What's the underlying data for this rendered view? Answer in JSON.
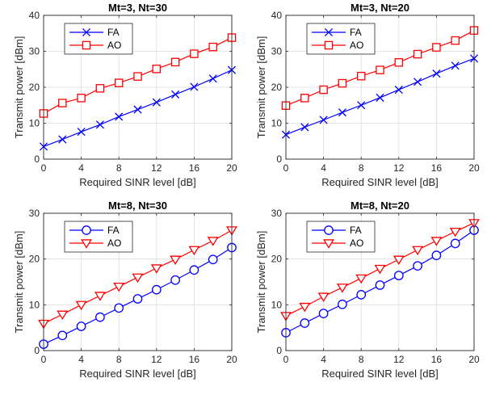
{
  "chart_data": [
    {
      "type": "line",
      "title": "Mt=3, Nt=30",
      "xlabel": "Required SINR level [dB]",
      "ylabel": "Transmit power [dBm]",
      "xlim": [
        0,
        20
      ],
      "ylim": [
        0,
        40
      ],
      "xticks": [
        0,
        4,
        8,
        12,
        16,
        20
      ],
      "yticks": [
        0,
        10,
        20,
        30,
        40
      ],
      "grid": true,
      "legend": "top-left",
      "x": [
        0,
        2,
        4,
        6,
        8,
        10,
        12,
        14,
        16,
        18,
        20
      ],
      "series": [
        {
          "name": "FA",
          "color": "#0000ff",
          "marker": "x",
          "values": [
            3.5,
            5.5,
            7.6,
            9.6,
            11.8,
            13.8,
            15.8,
            18.0,
            20.1,
            22.4,
            24.8
          ]
        },
        {
          "name": "AO",
          "color": "#ff0000",
          "marker": "square",
          "values": [
            12.7,
            15.6,
            17.0,
            19.7,
            21.2,
            23.0,
            25.1,
            27.0,
            29.3,
            31.2,
            33.8
          ]
        }
      ]
    },
    {
      "type": "line",
      "title": "Mt=3, Nt=20",
      "xlabel": "Required SINR level [dB]",
      "ylabel": "Transmit power [dBm]",
      "xlim": [
        0,
        20
      ],
      "ylim": [
        0,
        40
      ],
      "xticks": [
        0,
        4,
        8,
        12,
        16,
        20
      ],
      "yticks": [
        0,
        10,
        20,
        30,
        40
      ],
      "grid": true,
      "legend": "top-left",
      "x": [
        0,
        2,
        4,
        6,
        8,
        10,
        12,
        14,
        16,
        18,
        20
      ],
      "series": [
        {
          "name": "FA",
          "color": "#0000ff",
          "marker": "x",
          "values": [
            6.8,
            8.9,
            10.9,
            13.0,
            15.0,
            17.1,
            19.3,
            21.5,
            23.8,
            26.0,
            28.0
          ]
        },
        {
          "name": "AO",
          "color": "#ff0000",
          "marker": "square",
          "values": [
            14.9,
            17.0,
            19.3,
            21.1,
            23.1,
            24.8,
            26.9,
            29.2,
            31.1,
            33.0,
            35.8
          ]
        }
      ]
    },
    {
      "type": "line",
      "title": "Mt=8, Nt=30",
      "xlabel": "Required SINR level [dB]",
      "ylabel": "Transmit power [dBm]",
      "xlim": [
        0,
        20
      ],
      "ylim": [
        0,
        30
      ],
      "xticks": [
        0,
        4,
        8,
        12,
        16,
        20
      ],
      "yticks": [
        0,
        10,
        20,
        30
      ],
      "grid": true,
      "legend": "top-left",
      "x": [
        0,
        2,
        4,
        6,
        8,
        10,
        12,
        14,
        16,
        18,
        20
      ],
      "series": [
        {
          "name": "FA",
          "color": "#0000ff",
          "marker": "circle",
          "values": [
            1.4,
            3.3,
            5.3,
            7.3,
            9.3,
            11.3,
            13.3,
            15.4,
            17.6,
            19.9,
            22.5
          ]
        },
        {
          "name": "AO",
          "color": "#ff0000",
          "marker": "triangle-down",
          "values": [
            5.9,
            7.9,
            10.0,
            12.0,
            14.0,
            16.0,
            18.0,
            19.9,
            22.0,
            24.0,
            26.3
          ]
        }
      ]
    },
    {
      "type": "line",
      "title": "Mt=8, Nt=20",
      "xlabel": "Required SINR level [dB]",
      "ylabel": "Transmit power [dBm]",
      "xlim": [
        0,
        20
      ],
      "ylim": [
        0,
        30
      ],
      "xticks": [
        0,
        4,
        8,
        12,
        16,
        20
      ],
      "yticks": [
        0,
        10,
        20,
        30
      ],
      "grid": true,
      "legend": "top-left",
      "x": [
        0,
        2,
        4,
        6,
        8,
        10,
        12,
        14,
        16,
        18,
        20
      ],
      "series": [
        {
          "name": "FA",
          "color": "#0000ff",
          "marker": "circle",
          "values": [
            3.9,
            6.0,
            8.1,
            10.1,
            12.2,
            14.3,
            16.4,
            18.5,
            20.8,
            23.4,
            26.3
          ]
        },
        {
          "name": "AO",
          "color": "#ff0000",
          "marker": "triangle-down",
          "values": [
            7.6,
            9.6,
            11.8,
            13.8,
            15.8,
            17.9,
            19.9,
            22.0,
            24.0,
            26.0,
            27.9
          ]
        }
      ]
    }
  ]
}
